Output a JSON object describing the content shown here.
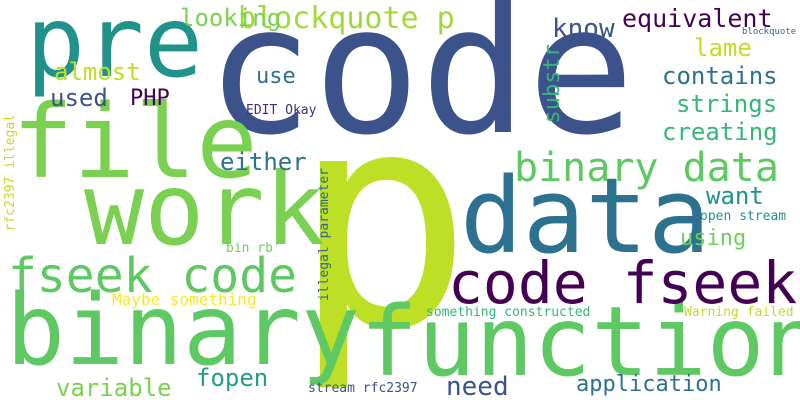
{
  "words": [
    {
      "text": "code",
      "color": "#3b528b"
    },
    {
      "text": "p",
      "color": "#bddf26"
    },
    {
      "text": "pre",
      "color": "#21918c"
    },
    {
      "text": "file",
      "color": "#7ad151"
    },
    {
      "text": "work",
      "color": "#7ad151"
    },
    {
      "text": "data",
      "color": "#2c728e"
    },
    {
      "text": "binary",
      "color": "#5ec962"
    },
    {
      "text": "function",
      "color": "#5ec962"
    },
    {
      "text": "code fseek",
      "color": "#440154"
    },
    {
      "text": "fseek code",
      "color": "#5ec962"
    },
    {
      "text": "binary data",
      "color": "#5ec962"
    },
    {
      "text": "blockquote p",
      "color": "#a0da39"
    },
    {
      "text": "equivalent",
      "color": "#440154"
    },
    {
      "text": "know",
      "color": "#3b528b"
    },
    {
      "text": "lame",
      "color": "#bddf26"
    },
    {
      "text": "contains",
      "color": "#2c728e"
    },
    {
      "text": "strings",
      "color": "#35b779"
    },
    {
      "text": "creating",
      "color": "#35b779"
    },
    {
      "text": "almost",
      "color": "#bddf26"
    },
    {
      "text": "used",
      "color": "#3b528b"
    },
    {
      "text": "PHP",
      "color": "#440154"
    },
    {
      "text": "use",
      "color": "#2c728e"
    },
    {
      "text": "either",
      "color": "#2c728e"
    },
    {
      "text": "want",
      "color": "#21918c"
    },
    {
      "text": "using",
      "color": "#6ece58"
    },
    {
      "text": "looking",
      "color": "#7ad151"
    },
    {
      "text": "substr",
      "color": "#35b779"
    },
    {
      "text": "EDIT Okay",
      "color": "#472d7b"
    },
    {
      "text": "rfc2397 illegal",
      "color": "#bddf26"
    },
    {
      "text": "illegal parameter",
      "color": "#31688e"
    },
    {
      "text": "blockquote",
      "color": "#31688e"
    },
    {
      "text": "open stream",
      "color": "#21918c"
    },
    {
      "text": "bin rb'",
      "color": "#6ece58"
    },
    {
      "text": "Maybe something",
      "color": "#fde725"
    },
    {
      "text": "something constructed",
      "color": "#35b779"
    },
    {
      "text": "Warning failed",
      "color": "#bddf26"
    },
    {
      "text": "variable",
      "color": "#7ad151"
    },
    {
      "text": "fopen",
      "color": "#1f9e89"
    },
    {
      "text": "need",
      "color": "#3b528b"
    },
    {
      "text": "application",
      "color": "#2c728e"
    },
    {
      "text": "stream rfc2397",
      "color": "#3b528b"
    }
  ]
}
